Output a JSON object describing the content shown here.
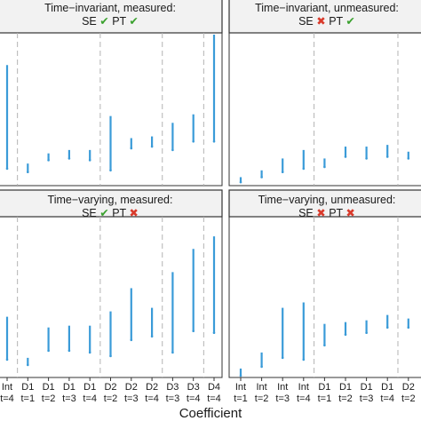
{
  "figure": {
    "x_axis_title": "Coefficient",
    "check_mark": "✔",
    "cross_mark": "✖",
    "check_color": "#3aa12e",
    "cross_color": "#d93a2b",
    "series_color": "#3a9bd8",
    "grid_color": "#b3b3b3"
  },
  "chart_data": [
    {
      "type": "range",
      "panel": "top-left",
      "title_line1": "Time−invariant, measured:",
      "title_line2": [
        {
          "text": "SE "
        },
        {
          "mark": "check"
        },
        {
          "text": " PT "
        },
        {
          "mark": "check"
        }
      ],
      "categories": [
        "Int t=4",
        "D1 t=1",
        "D1 t=2",
        "D1 t=3",
        "D1 t=4",
        "D2 t=2",
        "D2 t=3",
        "D2 t=4",
        "D3 t=3",
        "D3 t=4",
        "D4 t=4"
      ],
      "ranges": [
        [
          1.0,
          7.1
        ],
        [
          0.8,
          1.3
        ],
        [
          1.5,
          1.9
        ],
        [
          1.6,
          2.1
        ],
        [
          1.5,
          2.1
        ],
        [
          0.9,
          4.1
        ],
        [
          2.2,
          2.8
        ],
        [
          2.3,
          2.9
        ],
        [
          2.1,
          3.7
        ],
        [
          2.6,
          4.2
        ],
        [
          2.6,
          10.8
        ]
      ],
      "ylim": [
        0,
        9
      ],
      "grid_after_index": [
        0,
        4,
        7,
        9
      ]
    },
    {
      "type": "range",
      "panel": "top-right",
      "title_line1": "Time−invariant, unmeasured:",
      "title_line2": [
        {
          "text": "SE "
        },
        {
          "mark": "cross"
        },
        {
          "text": " PT "
        },
        {
          "mark": "check"
        }
      ],
      "categories": [
        "Int t=1",
        "Int t=2",
        "Int t=3",
        "Int t=4",
        "D1 t=1",
        "D1 t=2",
        "D1 t=3",
        "D1 t=4",
        "D2 t=2"
      ],
      "ranges": [
        [
          0.2,
          0.5
        ],
        [
          0.5,
          0.9
        ],
        [
          0.8,
          1.6
        ],
        [
          1.0,
          2.1
        ],
        [
          1.1,
          1.6
        ],
        [
          1.7,
          2.3
        ],
        [
          1.6,
          2.3
        ],
        [
          1.7,
          2.4
        ],
        [
          1.6,
          2.0
        ]
      ],
      "ylim": [
        0,
        9
      ],
      "grid_after_index": [
        3,
        7
      ]
    },
    {
      "type": "range",
      "panel": "bottom-left",
      "title_line1": "Time−varying, measured:",
      "title_line2": [
        {
          "text": "SE "
        },
        {
          "mark": "check"
        },
        {
          "text": " PT "
        },
        {
          "mark": "cross"
        }
      ],
      "categories": [
        "Int t=4",
        "D1 t=1",
        "D1 t=2",
        "D1 t=3",
        "D1 t=4",
        "D2 t=2",
        "D2 t=3",
        "D2 t=4",
        "D3 t=3",
        "D3 t=4",
        "D4 t=4"
      ],
      "ranges": [
        [
          1.0,
          3.4
        ],
        [
          0.7,
          1.1
        ],
        [
          1.5,
          2.8
        ],
        [
          1.5,
          2.9
        ],
        [
          1.4,
          2.9
        ],
        [
          1.2,
          3.7
        ],
        [
          2.1,
          5.0
        ],
        [
          2.3,
          3.9
        ],
        [
          1.4,
          5.9
        ],
        [
          2.6,
          7.2
        ],
        [
          2.5,
          7.9
        ]
      ],
      "ylim": [
        0,
        9
      ],
      "grid_after_index": [
        0,
        4,
        7,
        9
      ]
    },
    {
      "type": "range",
      "panel": "bottom-right",
      "title_line1": "Time−varying, unmeasured:",
      "title_line2": [
        {
          "text": "SE "
        },
        {
          "mark": "cross"
        },
        {
          "text": " PT "
        },
        {
          "mark": "cross"
        }
      ],
      "categories": [
        "Int t=1",
        "Int t=2",
        "Int t=3",
        "Int t=4",
        "D1 t=1",
        "D1 t=2",
        "D1 t=3",
        "D1 t=4",
        "D2 t=2"
      ],
      "ranges": [
        [
          0.1,
          0.5
        ],
        [
          0.6,
          1.4
        ],
        [
          1.1,
          3.9
        ],
        [
          1.0,
          4.2
        ],
        [
          1.8,
          3.0
        ],
        [
          2.4,
          3.1
        ],
        [
          2.5,
          3.2
        ],
        [
          2.8,
          3.5
        ],
        [
          2.8,
          3.3
        ]
      ],
      "ylim": [
        0,
        9
      ],
      "grid_after_index": [
        3,
        7
      ]
    }
  ]
}
